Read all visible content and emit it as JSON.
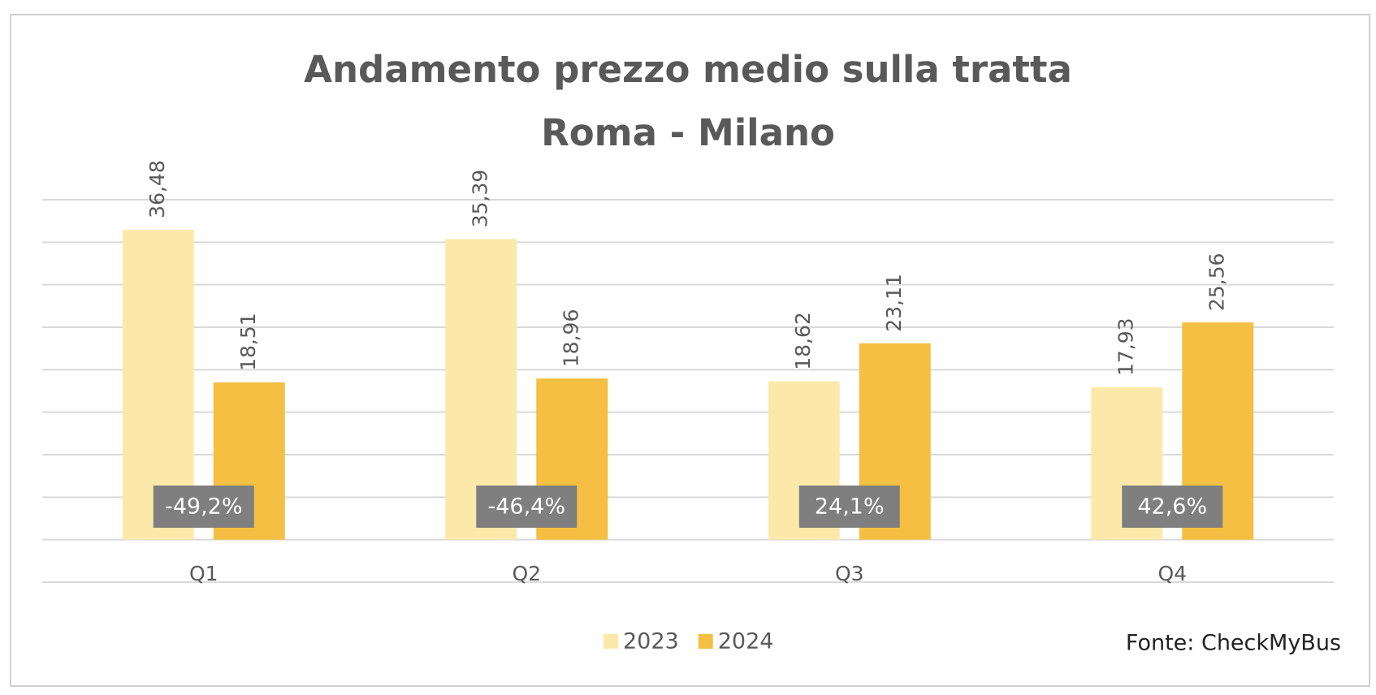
{
  "chart_data": {
    "type": "bar",
    "title": [
      "Andamento prezzo medio sulla tratta",
      "Roma - Milano"
    ],
    "categories": [
      "Q1",
      "Q2",
      "Q3",
      "Q4"
    ],
    "series": [
      {
        "name": "2023",
        "color": "#fce9a9",
        "values": [
          36.48,
          35.39,
          18.62,
          17.93
        ],
        "value_labels": [
          "36,48",
          "35,39",
          "18,62",
          "17,93"
        ]
      },
      {
        "name": "2024",
        "color": "#f4bf42",
        "values": [
          18.51,
          18.96,
          23.11,
          25.56
        ],
        "value_labels": [
          "18,51",
          "18,96",
          "23,11",
          "25,56"
        ]
      }
    ],
    "annotations": [
      "-49,2%",
      "-46,4%",
      "24,1%",
      "42,6%"
    ],
    "ylim": [
      -5,
      40
    ],
    "yticks": [
      -5,
      0,
      5,
      10,
      15,
      20,
      25,
      30,
      35,
      40
    ],
    "ytick_labels": false,
    "grid": true,
    "legend": "bottom",
    "source": "Fonte: CheckMyBus"
  }
}
